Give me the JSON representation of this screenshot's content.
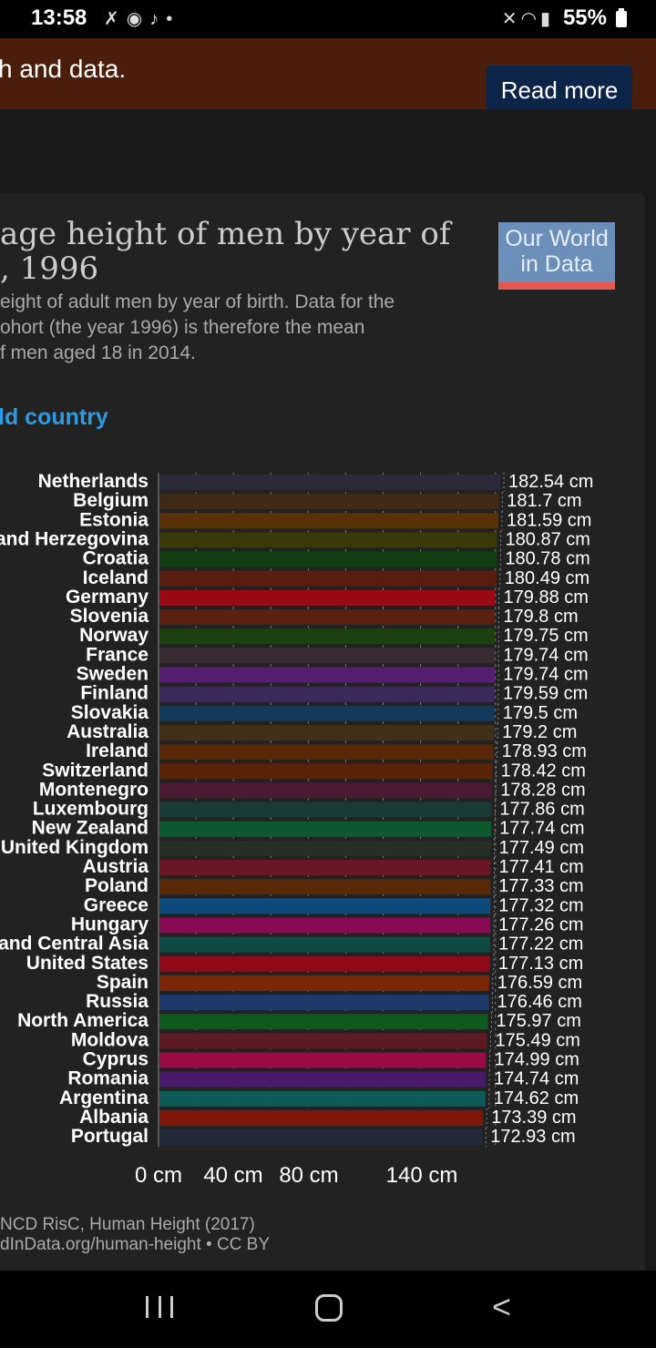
{
  "status_bar": {
    "time": "13:58",
    "battery": "55%",
    "icons_left": [
      "missed-call-icon",
      "record-icon",
      "tiktok-icon",
      "dot-icon"
    ],
    "icons_right": [
      "mute-icon",
      "wifi-icon",
      "signal-icon"
    ]
  },
  "banner": {
    "text": "h and data.",
    "read_more": "Read more"
  },
  "chart_card": {
    "title_line1": "age height of men by year of",
    "title_line2": ", 1996",
    "subtitle_line1": "eight of adult men by year of birth. Data for the",
    "subtitle_line2": "ohort (the year 1996) is therefore the mean",
    "subtitle_line3": "f men aged 18 in 2014.",
    "logo_line1": "Our World",
    "logo_line2": "in Data",
    "add_country": "ld country",
    "source_line1": "NCD RisC, Human Height (2017)",
    "source_line2": "dInData.org/human-height • CC BY"
  },
  "chart_data": {
    "type": "bar",
    "orientation": "horizontal",
    "categories": [
      "Netherlands",
      "Belgium",
      "Estonia",
      "and Herzegovina",
      "Croatia",
      "Iceland",
      "Germany",
      "Slovenia",
      "Norway",
      "France",
      "Sweden",
      "Finland",
      "Slovakia",
      "Australia",
      "Ireland",
      "Switzerland",
      "Montenegro",
      "Luxembourg",
      "New Zealand",
      "United Kingdom",
      "Austria",
      "Poland",
      "Greece",
      "Hungary",
      "and Central Asia",
      "United States",
      "Spain",
      "Russia",
      "North America",
      "Moldova",
      "Cyprus",
      "Romania",
      "Argentina",
      "Albania",
      "Portugal"
    ],
    "values": [
      182.54,
      181.7,
      181.59,
      180.87,
      180.78,
      180.49,
      179.88,
      179.8,
      179.75,
      179.74,
      179.74,
      179.59,
      179.5,
      179.2,
      178.93,
      178.42,
      178.28,
      177.86,
      177.74,
      177.49,
      177.41,
      177.33,
      177.32,
      177.26,
      177.22,
      177.13,
      176.59,
      176.46,
      175.97,
      175.49,
      174.99,
      174.74,
      174.62,
      173.39,
      172.93
    ],
    "value_labels": [
      "182.54 cm",
      "181.7 cm",
      "181.59 cm",
      "180.87 cm",
      "180.78 cm",
      "180.49 cm",
      "179.88 cm",
      "179.8 cm",
      "179.75 cm",
      "179.74 cm",
      "179.74 cm",
      "179.59 cm",
      "179.5 cm",
      "179.2 cm",
      "178.93 cm",
      "178.42 cm",
      "178.28 cm",
      "177.86 cm",
      "177.74 cm",
      "177.49 cm",
      "177.41 cm",
      "177.33 cm",
      "177.32 cm",
      "177.26 cm",
      "177.22 cm",
      "177.13 cm",
      "176.59 cm",
      "176.46 cm",
      "175.97 cm",
      "175.49 cm",
      "174.99 cm",
      "174.74 cm",
      "174.62 cm",
      "173.39 cm",
      "172.93 cm"
    ],
    "colors": [
      "#2a2a3a",
      "#3f2a18",
      "#5a3208",
      "#3a3a08",
      "#123f12",
      "#5a1e10",
      "#9a0a14",
      "#5a2010",
      "#1e4010",
      "#3a2a32",
      "#561e6e",
      "#3a2a5a",
      "#123a5a",
      "#40301a",
      "#5a2608",
      "#5a2408",
      "#4a1a32",
      "#1a3a36",
      "#0e5a30",
      "#262e26",
      "#6a1624",
      "#5a2a08",
      "#0e4a7a",
      "#8a0a56",
      "#0e4a42",
      "#8e0a18",
      "#7a2608",
      "#1e3a6a",
      "#0e5a1e",
      "#5e1a22",
      "#9a0a44",
      "#4a1a6a",
      "#0e5a56",
      "#7e1608",
      "#222a3a"
    ],
    "xticks": [
      0,
      40,
      80,
      140
    ],
    "xtick_labels": [
      "0 cm",
      "40 cm",
      "80 cm",
      "140 cm"
    ],
    "xlim": [
      0,
      182.54
    ],
    "grid": true
  }
}
